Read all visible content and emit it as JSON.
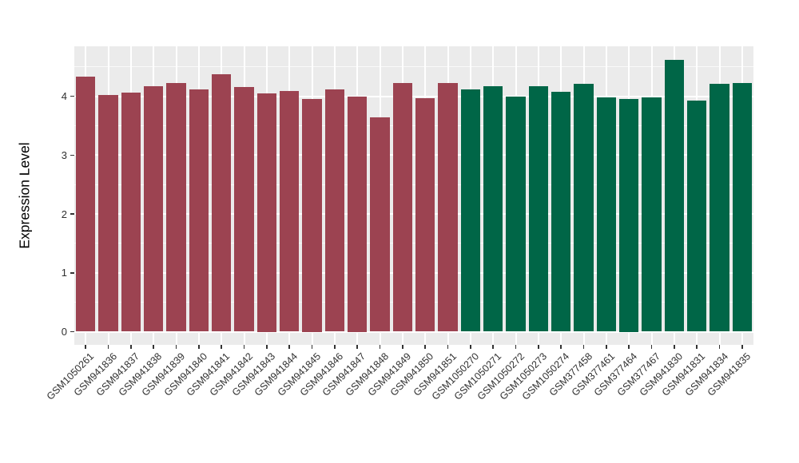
{
  "figure": {
    "background_color": "#FFFFFF",
    "panel_background_color": "#EBEBEB",
    "gridline_color": "#FFFFFF"
  },
  "chart_data": {
    "type": "bar",
    "title": "",
    "xlabel": "",
    "ylabel": "Expression Level",
    "ylim": [
      0,
      4.85
    ],
    "yticks": [
      0,
      1,
      2,
      3,
      4
    ],
    "minor_yticks": [
      0.5,
      1.5,
      2.5,
      3.5,
      4.5
    ],
    "grid": "on",
    "legend_position": "none",
    "categories": [
      "GSM1050261",
      "GSM941836",
      "GSM941837",
      "GSM941838",
      "GSM941839",
      "GSM941840",
      "GSM941841",
      "GSM941842",
      "GSM941843",
      "GSM941844",
      "GSM941845",
      "GSM941846",
      "GSM941847",
      "GSM941848",
      "GSM941849",
      "GSM941850",
      "GSM941851",
      "GSM1050270",
      "GSM1050271",
      "GSM1050272",
      "GSM1050273",
      "GSM1050274",
      "GSM377458",
      "GSM377461",
      "GSM377464",
      "GSM377467",
      "GSM941830",
      "GSM941831",
      "GSM941834",
      "GSM941835"
    ],
    "values": [
      4.33,
      4.02,
      4.06,
      4.17,
      4.23,
      4.12,
      4.37,
      4.16,
      4.05,
      4.09,
      3.95,
      4.11,
      4.0,
      3.64,
      4.23,
      3.96,
      4.23,
      4.12,
      4.17,
      3.99,
      4.17,
      4.07,
      4.21,
      3.98,
      3.95,
      3.98,
      4.62,
      3.93,
      4.21,
      4.22
    ],
    "bar_colors": [
      "#9C4351",
      "#9C4351",
      "#9C4351",
      "#9C4351",
      "#9C4351",
      "#9C4351",
      "#9C4351",
      "#9C4351",
      "#9C4351",
      "#9C4351",
      "#9C4351",
      "#9C4351",
      "#9C4351",
      "#9C4351",
      "#9C4351",
      "#9C4351",
      "#9C4351",
      "#006647",
      "#006647",
      "#006647",
      "#006647",
      "#006647",
      "#006647",
      "#006647",
      "#006647",
      "#006647",
      "#006647",
      "#006647",
      "#006647",
      "#006647"
    ]
  }
}
